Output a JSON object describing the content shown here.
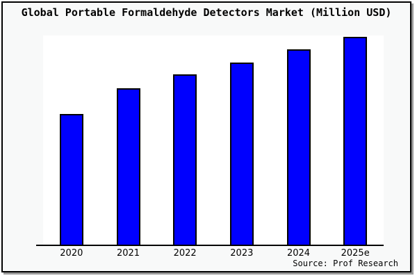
{
  "frame": {
    "border_color": "#000000",
    "background": "#f8f9f9",
    "shadow_color": "#9a9a9a"
  },
  "chart_data": {
    "type": "bar",
    "title": "Global Portable Formaldehyde Detectors Market (Million USD)",
    "categories": [
      "2020",
      "2021",
      "2022",
      "2023",
      "2024",
      "2025e"
    ],
    "values_pct_of_axis_max": [
      62.6,
      74.8,
      81.5,
      87.1,
      93.4,
      99.3
    ],
    "ylim": [
      0,
      100
    ],
    "xlabel": "",
    "ylabel": "",
    "y_axis": "unlabeled - no ticks, no gridlines",
    "gridlines": false,
    "legend": "none",
    "bar_color": "#0000fe",
    "bar_border_color": "#000000",
    "plot_background": "#ffffff"
  },
  "source": {
    "label": "Source: Prof Research"
  }
}
